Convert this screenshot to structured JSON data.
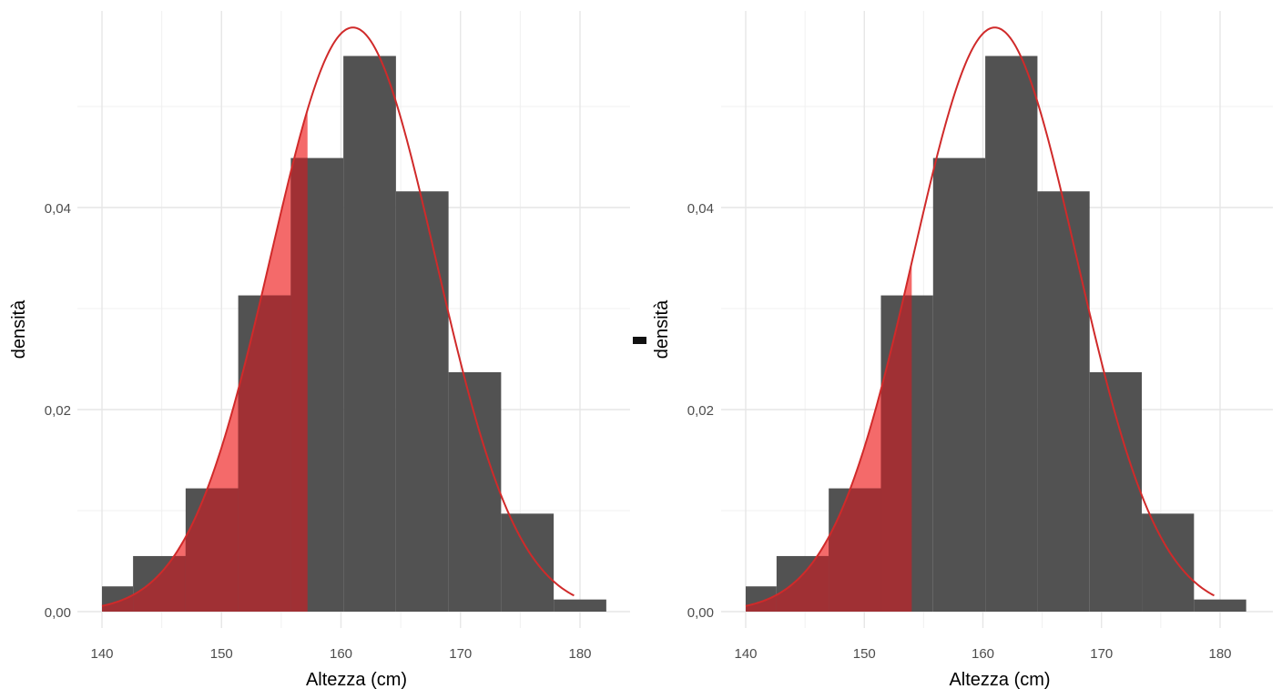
{
  "colors": {
    "bar": "#525252",
    "curve": "#d02a2a",
    "shade": "#f46a6a",
    "shade_over_bar": "#a03034",
    "grid": "#e6e6e6"
  },
  "chart_data": [
    {
      "type": "bar",
      "xlabel": "Altezza (cm)",
      "ylabel": "densità",
      "xlim": [
        138,
        184
      ],
      "ylim": [
        -0.001,
        0.06
      ],
      "xticks": [
        140,
        150,
        160,
        170,
        180
      ],
      "xtick_labels": [
        "140",
        "150",
        "160",
        "170",
        "180"
      ],
      "yticks": [
        0.0,
        0.02,
        0.04
      ],
      "ytick_labels": [
        "0,00",
        "0,02",
        "0,04"
      ],
      "grid": true,
      "histogram": {
        "bin_edges": [
          140.0,
          142.6,
          147.0,
          151.4,
          155.8,
          160.2,
          164.6,
          169.0,
          173.4,
          177.8,
          182.2
        ],
        "densities": [
          0.0025,
          0.0055,
          0.0122,
          0.0313,
          0.0449,
          0.055,
          0.0416,
          0.0237,
          0.0097,
          0.0012
        ]
      },
      "normal_curve": {
        "mean": 161,
        "sd": 6.9,
        "x_range": [
          140,
          179.5
        ]
      },
      "shaded_region": {
        "from": 140,
        "to": 157.2
      }
    },
    {
      "type": "bar",
      "xlabel": "Altezza (cm)",
      "ylabel": "densità",
      "xlim": [
        138,
        184
      ],
      "ylim": [
        -0.001,
        0.06
      ],
      "xticks": [
        140,
        150,
        160,
        170,
        180
      ],
      "xtick_labels": [
        "140",
        "150",
        "160",
        "170",
        "180"
      ],
      "yticks": [
        0.0,
        0.02,
        0.04
      ],
      "ytick_labels": [
        "0,00",
        "0,02",
        "0,04"
      ],
      "grid": true,
      "histogram": {
        "bin_edges": [
          140.0,
          142.6,
          147.0,
          151.4,
          155.8,
          160.2,
          164.6,
          169.0,
          173.4,
          177.8,
          182.2
        ],
        "densities": [
          0.0025,
          0.0055,
          0.0122,
          0.0313,
          0.0449,
          0.055,
          0.0416,
          0.0237,
          0.0097,
          0.0012
        ]
      },
      "normal_curve": {
        "mean": 161,
        "sd": 6.9,
        "x_range": [
          140,
          179.5
        ]
      },
      "shaded_region": {
        "from": 140,
        "to": 154
      }
    }
  ]
}
